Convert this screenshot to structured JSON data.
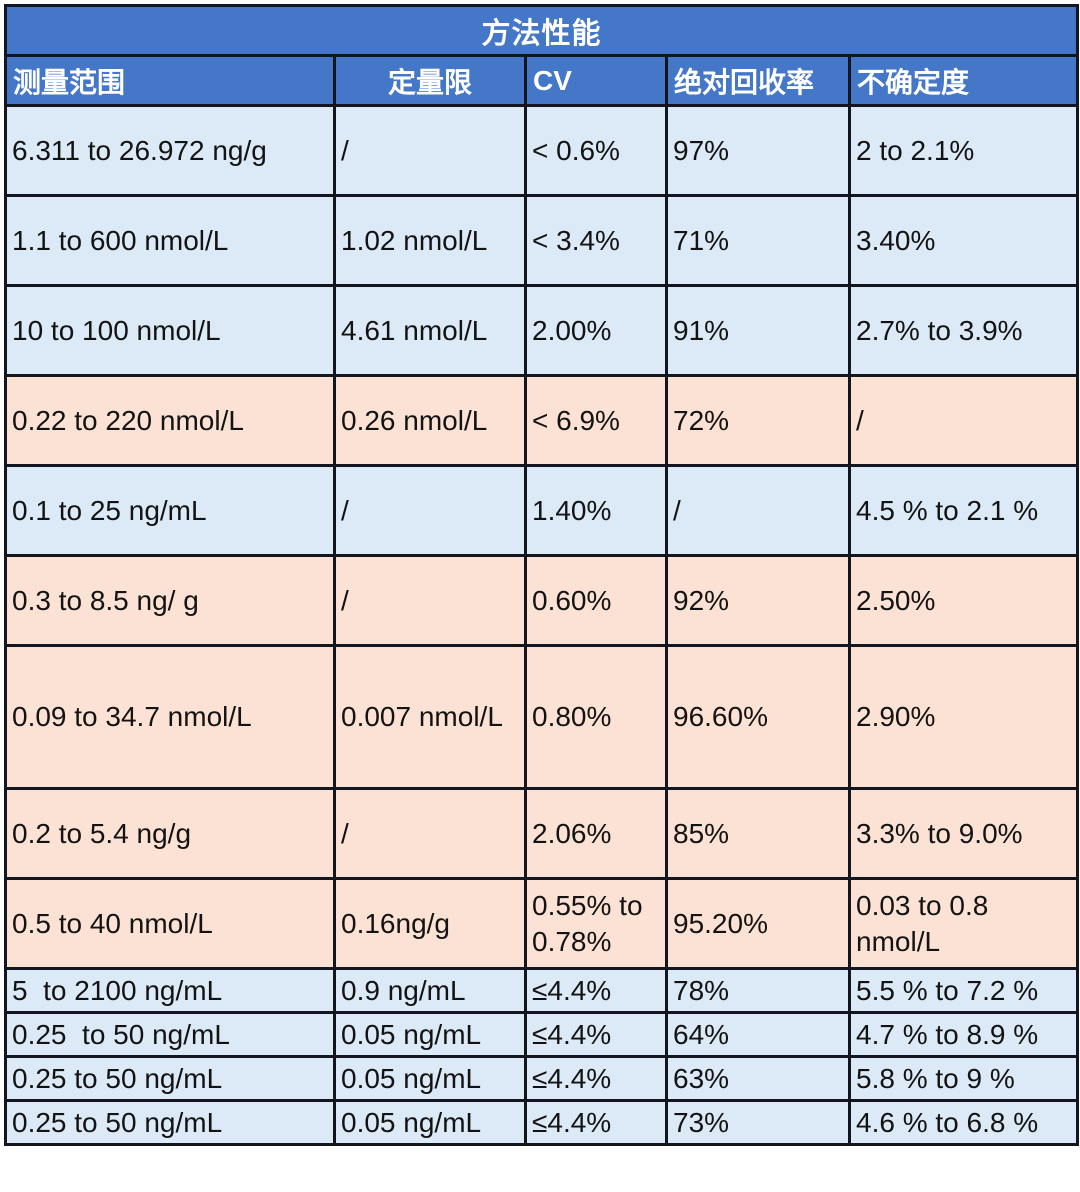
{
  "title": "方法性能",
  "columns": [
    {
      "label": "测量范围",
      "align": "left"
    },
    {
      "label": "定量限",
      "align": "center"
    },
    {
      "label": "CV",
      "align": "left"
    },
    {
      "label": "绝对回收率",
      "align": "left"
    },
    {
      "label": "不确定度",
      "align": "left"
    }
  ],
  "rows": [
    {
      "tone": "blue",
      "cells": [
        "6.311 to 26.972 ng/g",
        "/",
        "< 0.6%",
        "97%",
        "2 to 2.1%"
      ]
    },
    {
      "tone": "blue",
      "cells": [
        "1.1 to 600 nmol/L",
        "1.02 nmol/L",
        "< 3.4%",
        "71%",
        "3.40%"
      ]
    },
    {
      "tone": "blue",
      "cells": [
        "10 to 100 nmol/L",
        "4.61 nmol/L",
        "2.00%",
        "91%",
        "2.7% to 3.9%"
      ]
    },
    {
      "tone": "pink",
      "cells": [
        "0.22 to 220 nmol/L",
        "0.26 nmol/L",
        "< 6.9%",
        "72%",
        "/"
      ]
    },
    {
      "tone": "blue",
      "cells": [
        "0.1 to 25 ng/mL",
        "/",
        "1.40%",
        "/",
        "4.5 % to 2.1 %"
      ]
    },
    {
      "tone": "pink",
      "cells": [
        "0.3 to 8.5 ng/ g",
        "/",
        "0.60%",
        "92%",
        "2.50%"
      ]
    },
    {
      "tone": "pink",
      "cells": [
        "0.09 to 34.7 nmol/L",
        "0.007 nmol/L",
        "0.80%",
        "96.60%",
        "2.90%"
      ]
    },
    {
      "tone": "pink",
      "cells": [
        "0.2 to 5.4 ng/g",
        "/",
        "2.06%",
        "85%",
        "3.3% to 9.0%"
      ]
    },
    {
      "tone": "pink",
      "cells": [
        "0.5 to 40 nmol/L",
        "0.16ng/g",
        "0.55% to 0.78%",
        "95.20%",
        "0.03 to 0.8 nmol/L"
      ]
    },
    {
      "tone": "blue",
      "cells": [
        "5  to 2100 ng/mL",
        "0.9 ng/mL",
        "≤4.4%",
        "78%",
        "5.5 % to 7.2 %"
      ]
    },
    {
      "tone": "blue",
      "cells": [
        "0.25  to 50 ng/mL",
        "0.05 ng/mL",
        "≤4.4%",
        "64%",
        "4.7 % to 8.9 %"
      ]
    },
    {
      "tone": "blue",
      "cells": [
        "0.25 to 50 ng/mL",
        "0.05 ng/mL",
        "≤4.4%",
        "63%",
        "5.8 % to 9 %"
      ]
    },
    {
      "tone": "blue",
      "cells": [
        "0.25 to 50 ng/mL",
        "0.05 ng/mL",
        "≤4.4%",
        "73%",
        "4.6 % to 6.8 %"
      ]
    }
  ],
  "colors": {
    "header_bg": "#4477c8",
    "header_text": "#ffffff",
    "row_blue": "#dce9f6",
    "row_pink": "#fce2d4",
    "border": "#14161f",
    "text": "#131313"
  }
}
